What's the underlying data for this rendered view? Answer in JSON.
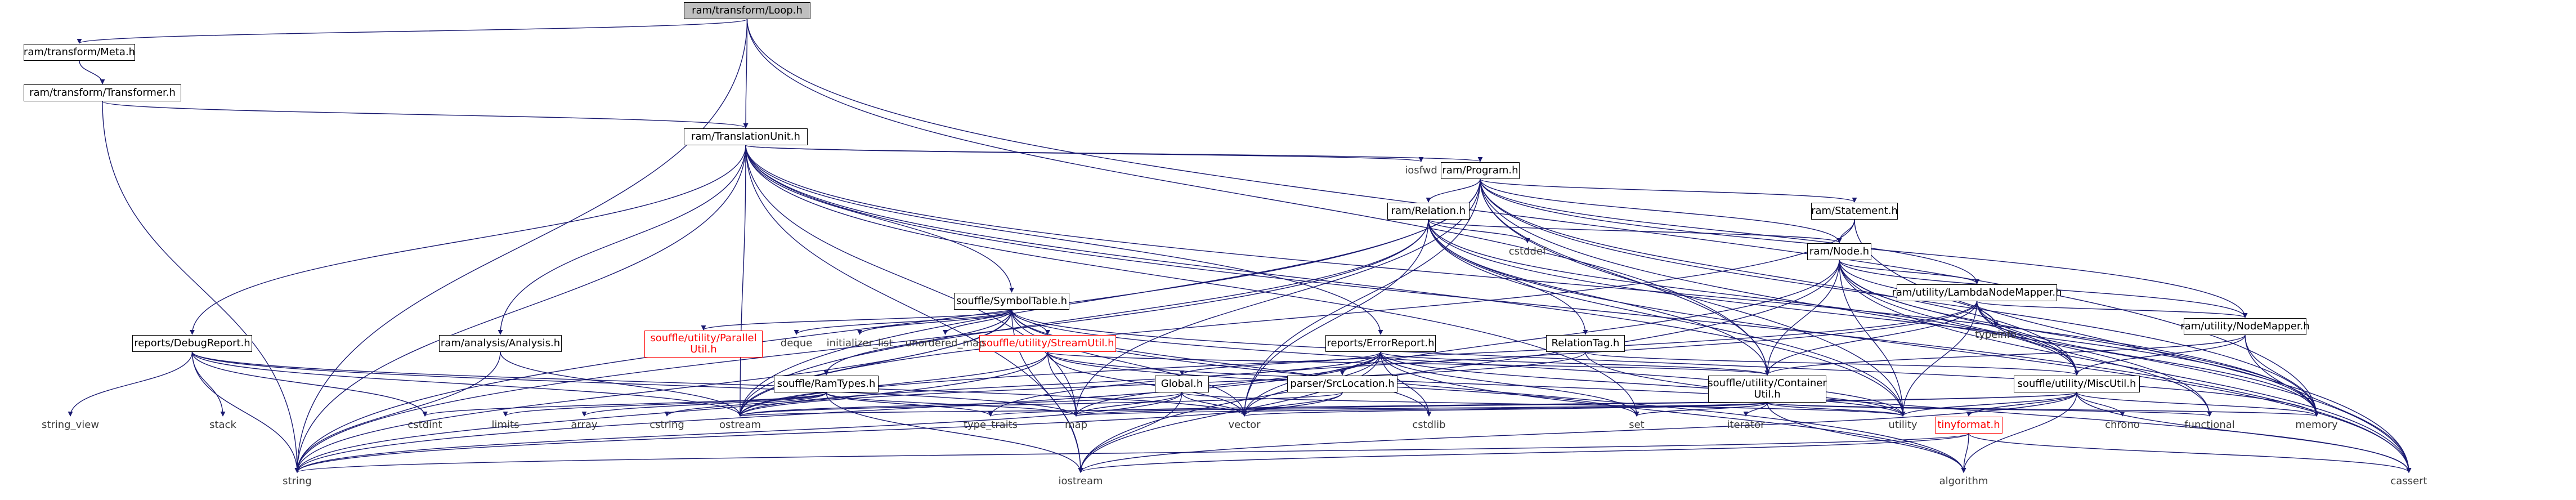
{
  "graph": {
    "edge_color": "#191970",
    "nodes": [
      {
        "id": "loop",
        "label": "ram/transform/Loop.h",
        "kind": "root"
      },
      {
        "id": "meta",
        "label": "ram/transform/Meta.h",
        "kind": "file"
      },
      {
        "id": "transformer",
        "label": "ram/transform/Transformer.h",
        "kind": "file"
      },
      {
        "id": "tu",
        "label": "ram/TranslationUnit.h",
        "kind": "file"
      },
      {
        "id": "program",
        "label": "ram/Program.h",
        "kind": "file"
      },
      {
        "id": "relation",
        "label": "ram/Relation.h",
        "kind": "file"
      },
      {
        "id": "statement",
        "label": "ram/Statement.h",
        "kind": "file"
      },
      {
        "id": "node",
        "label": "ram/Node.h",
        "kind": "file"
      },
      {
        "id": "lambda",
        "label": "ram/utility/LambdaNodeMapper.h",
        "kind": "file"
      },
      {
        "id": "nodemapper",
        "label": "ram/utility/NodeMapper.h",
        "kind": "file"
      },
      {
        "id": "symtab",
        "label": "souffle/SymbolTable.h",
        "kind": "file"
      },
      {
        "id": "parallel",
        "label": "souffle/utility/Parallel\nUtil.h",
        "kind": "missing"
      },
      {
        "id": "stream",
        "label": "souffle/utility/StreamUtil.h",
        "kind": "missing"
      },
      {
        "id": "errrep",
        "label": "reports/ErrorReport.h",
        "kind": "file"
      },
      {
        "id": "reltag",
        "label": "RelationTag.h",
        "kind": "file"
      },
      {
        "id": "container",
        "label": "souffle/utility/Container\nUtil.h",
        "kind": "file"
      },
      {
        "id": "misc",
        "label": "souffle/utility/MiscUtil.h",
        "kind": "file"
      },
      {
        "id": "tinyformat",
        "label": "tinyformat.h",
        "kind": "missing"
      },
      {
        "id": "debug",
        "label": "reports/DebugReport.h",
        "kind": "file"
      },
      {
        "id": "analysis",
        "label": "ram/analysis/Analysis.h",
        "kind": "file"
      },
      {
        "id": "ramtypes",
        "label": "souffle/RamTypes.h",
        "kind": "file"
      },
      {
        "id": "global",
        "label": "Global.h",
        "kind": "file"
      },
      {
        "id": "srcloc",
        "label": "parser/SrcLocation.h",
        "kind": "file"
      },
      {
        "id": "iosfwd",
        "label": "iosfwd",
        "kind": "ext"
      },
      {
        "id": "cstddef",
        "label": "cstddef",
        "kind": "ext"
      },
      {
        "id": "typeinfo",
        "label": "typeinfo",
        "kind": "ext"
      },
      {
        "id": "deque",
        "label": "deque",
        "kind": "ext"
      },
      {
        "id": "initlist",
        "label": "initializer_list",
        "kind": "ext"
      },
      {
        "id": "umap",
        "label": "unordered_map",
        "kind": "ext"
      },
      {
        "id": "string_view",
        "label": "string_view",
        "kind": "ext"
      },
      {
        "id": "stack",
        "label": "stack",
        "kind": "ext"
      },
      {
        "id": "cstdint",
        "label": "cstdint",
        "kind": "ext"
      },
      {
        "id": "limits",
        "label": "limits",
        "kind": "ext"
      },
      {
        "id": "array",
        "label": "array",
        "kind": "ext"
      },
      {
        "id": "cstring",
        "label": "cstring",
        "kind": "ext"
      },
      {
        "id": "ostream",
        "label": "ostream",
        "kind": "ext"
      },
      {
        "id": "type_traits",
        "label": "type_traits",
        "kind": "ext"
      },
      {
        "id": "map",
        "label": "map",
        "kind": "ext"
      },
      {
        "id": "vector",
        "label": "vector",
        "kind": "ext"
      },
      {
        "id": "cstdlib",
        "label": "cstdlib",
        "kind": "ext"
      },
      {
        "id": "set",
        "label": "set",
        "kind": "ext"
      },
      {
        "id": "iterator",
        "label": "iterator",
        "kind": "ext"
      },
      {
        "id": "utility",
        "label": "utility",
        "kind": "ext"
      },
      {
        "id": "chrono",
        "label": "chrono",
        "kind": "ext"
      },
      {
        "id": "functional",
        "label": "functional",
        "kind": "ext"
      },
      {
        "id": "memory",
        "label": "memory",
        "kind": "ext"
      },
      {
        "id": "string",
        "label": "string",
        "kind": "ext"
      },
      {
        "id": "iostream",
        "label": "iostream",
        "kind": "ext"
      },
      {
        "id": "algorithm",
        "label": "algorithm",
        "kind": "ext"
      },
      {
        "id": "cassert",
        "label": "cassert",
        "kind": "ext"
      }
    ],
    "edges": [
      [
        "loop",
        "meta"
      ],
      [
        "loop",
        "tu"
      ],
      [
        "loop",
        "string"
      ],
      [
        "loop",
        "container"
      ],
      [
        "loop",
        "memory"
      ],
      [
        "meta",
        "transformer"
      ],
      [
        "transformer",
        "tu"
      ],
      [
        "transformer",
        "string"
      ],
      [
        "tu",
        "iosfwd"
      ],
      [
        "tu",
        "program"
      ],
      [
        "tu",
        "symtab"
      ],
      [
        "tu",
        "errrep"
      ],
      [
        "tu",
        "debug"
      ],
      [
        "tu",
        "analysis"
      ],
      [
        "tu",
        "map"
      ],
      [
        "tu",
        "set"
      ],
      [
        "tu",
        "utility"
      ],
      [
        "tu",
        "string"
      ],
      [
        "tu",
        "memory"
      ],
      [
        "tu",
        "ostream"
      ],
      [
        "tu",
        "cassert"
      ],
      [
        "tu",
        "iostream"
      ],
      [
        "program",
        "relation"
      ],
      [
        "program",
        "statement"
      ],
      [
        "program",
        "node"
      ],
      [
        "program",
        "lambda"
      ],
      [
        "program",
        "nodemapper"
      ],
      [
        "program",
        "container"
      ],
      [
        "program",
        "misc"
      ],
      [
        "program",
        "string"
      ],
      [
        "program",
        "vector"
      ],
      [
        "program",
        "ostream"
      ],
      [
        "program",
        "map"
      ],
      [
        "program",
        "utility"
      ],
      [
        "program",
        "memory"
      ],
      [
        "program",
        "cassert"
      ],
      [
        "relation",
        "cstddef"
      ],
      [
        "relation",
        "node"
      ],
      [
        "relation",
        "reltag"
      ],
      [
        "relation",
        "container"
      ],
      [
        "relation",
        "misc"
      ],
      [
        "relation",
        "string"
      ],
      [
        "relation",
        "vector"
      ],
      [
        "relation",
        "ostream"
      ],
      [
        "relation",
        "utility"
      ],
      [
        "relation",
        "memory"
      ],
      [
        "relation",
        "cassert"
      ],
      [
        "statement",
        "node"
      ],
      [
        "statement",
        "ostream"
      ],
      [
        "statement",
        "cassert"
      ],
      [
        "node",
        "lambda"
      ],
      [
        "node",
        "nodemapper"
      ],
      [
        "node",
        "typeinfo"
      ],
      [
        "node",
        "container"
      ],
      [
        "node",
        "misc"
      ],
      [
        "node",
        "functional"
      ],
      [
        "node",
        "vector"
      ],
      [
        "node",
        "utility"
      ],
      [
        "node",
        "iostream"
      ],
      [
        "node",
        "memory"
      ],
      [
        "node",
        "cassert"
      ],
      [
        "lambda",
        "nodemapper"
      ],
      [
        "lambda",
        "container"
      ],
      [
        "lambda",
        "misc"
      ],
      [
        "lambda",
        "memory"
      ],
      [
        "lambda",
        "type_traits"
      ],
      [
        "lambda",
        "functional"
      ],
      [
        "lambda",
        "typeinfo"
      ],
      [
        "lambda",
        "ostream"
      ],
      [
        "lambda",
        "utility"
      ],
      [
        "nodemapper",
        "misc"
      ],
      [
        "nodemapper",
        "container"
      ],
      [
        "nodemapper",
        "memory"
      ],
      [
        "nodemapper",
        "cassert"
      ],
      [
        "symtab",
        "parallel"
      ],
      [
        "symtab",
        "stream"
      ],
      [
        "symtab",
        "ramtypes"
      ],
      [
        "symtab",
        "deque"
      ],
      [
        "symtab",
        "initlist"
      ],
      [
        "symtab",
        "umap"
      ],
      [
        "symtab",
        "vector"
      ],
      [
        "symtab",
        "string"
      ],
      [
        "symtab",
        "iostream"
      ],
      [
        "symtab",
        "ostream"
      ],
      [
        "symtab",
        "algorithm"
      ],
      [
        "symtab",
        "cstdlib"
      ],
      [
        "symtab",
        "memory"
      ],
      [
        "symtab",
        "utility"
      ],
      [
        "stream",
        "container"
      ],
      [
        "stream",
        "map"
      ],
      [
        "stream",
        "set"
      ],
      [
        "stream",
        "vector"
      ],
      [
        "stream",
        "ostream"
      ],
      [
        "stream",
        "string"
      ],
      [
        "stream",
        "utility"
      ],
      [
        "errrep",
        "global"
      ],
      [
        "errrep",
        "srcloc"
      ],
      [
        "errrep",
        "container"
      ],
      [
        "errrep",
        "algorithm"
      ],
      [
        "errrep",
        "cstdlib"
      ],
      [
        "errrep",
        "iostream"
      ],
      [
        "errrep",
        "ostream"
      ],
      [
        "errrep",
        "set"
      ],
      [
        "errrep",
        "string"
      ],
      [
        "errrep",
        "utility"
      ],
      [
        "errrep",
        "vector"
      ],
      [
        "errrep",
        "map"
      ],
      [
        "reltag",
        "misc"
      ],
      [
        "reltag",
        "ostream"
      ],
      [
        "reltag",
        "cassert"
      ],
      [
        "container",
        "iterator"
      ],
      [
        "container",
        "map"
      ],
      [
        "container",
        "set"
      ],
      [
        "container",
        "vector"
      ],
      [
        "container",
        "utility"
      ],
      [
        "container",
        "memory"
      ],
      [
        "container",
        "functional"
      ],
      [
        "container",
        "ostream"
      ],
      [
        "container",
        "algorithm"
      ],
      [
        "misc",
        "tinyformat"
      ],
      [
        "misc",
        "chrono"
      ],
      [
        "misc",
        "memory"
      ],
      [
        "misc",
        "utility"
      ],
      [
        "misc",
        "iostream"
      ],
      [
        "misc",
        "cassert"
      ],
      [
        "misc",
        "type_traits"
      ],
      [
        "misc",
        "map"
      ],
      [
        "misc",
        "algorithm"
      ],
      [
        "tinyformat",
        "algorithm"
      ],
      [
        "tinyformat",
        "iostream"
      ],
      [
        "tinyformat",
        "string"
      ],
      [
        "tinyformat",
        "cassert"
      ],
      [
        "debug",
        "cstdint"
      ],
      [
        "debug",
        "stack"
      ],
      [
        "debug",
        "string_view"
      ],
      [
        "debug",
        "string"
      ],
      [
        "debug",
        "ostream"
      ],
      [
        "debug",
        "map"
      ],
      [
        "debug",
        "vector"
      ],
      [
        "analysis",
        "string"
      ],
      [
        "analysis",
        "ostream"
      ],
      [
        "ramtypes",
        "cstdint"
      ],
      [
        "ramtypes",
        "limits"
      ],
      [
        "ramtypes",
        "array"
      ],
      [
        "ramtypes",
        "cstring"
      ],
      [
        "ramtypes",
        "iostream"
      ],
      [
        "ramtypes",
        "type_traits"
      ],
      [
        "ramtypes",
        "map"
      ],
      [
        "global",
        "map"
      ],
      [
        "global",
        "string"
      ],
      [
        "global",
        "iostream"
      ],
      [
        "global",
        "vector"
      ],
      [
        "global",
        "ostream"
      ],
      [
        "global",
        "utility"
      ],
      [
        "srcloc",
        "string"
      ],
      [
        "srcloc",
        "vector"
      ],
      [
        "srcloc",
        "ostream"
      ]
    ]
  }
}
